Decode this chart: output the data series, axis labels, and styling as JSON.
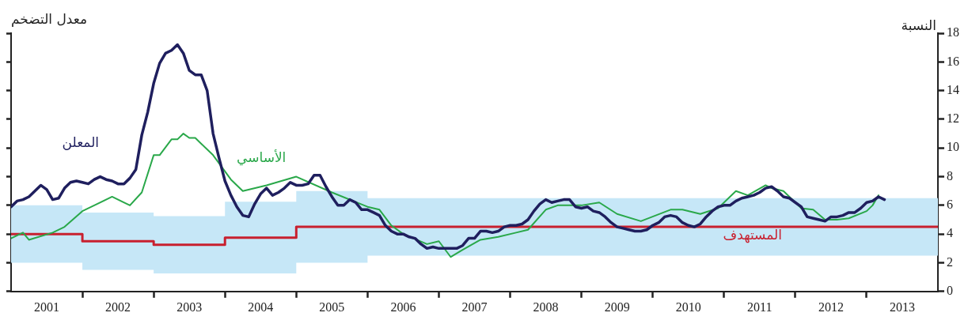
{
  "chart_data": {
    "type": "line",
    "title": "معدل التضخم",
    "ylabel": "النسبة",
    "x": [
      "2001-01",
      "2001-02",
      "2001-03",
      "2001-04",
      "2001-05",
      "2001-06",
      "2001-07",
      "2001-08",
      "2001-09",
      "2001-10",
      "2001-11",
      "2001-12",
      "2002-01",
      "2002-02",
      "2002-03",
      "2002-04",
      "2002-05",
      "2002-06",
      "2002-07",
      "2002-08",
      "2002-09",
      "2002-10",
      "2002-11",
      "2002-12",
      "2003-01",
      "2003-02",
      "2003-03",
      "2003-04",
      "2003-05",
      "2003-06",
      "2003-07",
      "2003-08",
      "2003-09",
      "2003-10",
      "2003-11",
      "2003-12",
      "2004-01",
      "2004-02",
      "2004-03",
      "2004-04",
      "2004-05",
      "2004-06",
      "2004-07",
      "2004-08",
      "2004-09",
      "2004-10",
      "2004-11",
      "2004-12",
      "2005-01",
      "2005-02",
      "2005-03",
      "2005-04",
      "2005-05",
      "2005-06",
      "2005-07",
      "2005-08",
      "2005-09",
      "2005-10",
      "2005-11",
      "2005-12",
      "2006-01",
      "2006-02",
      "2006-03",
      "2006-04",
      "2006-05",
      "2006-06",
      "2006-07",
      "2006-08",
      "2006-09",
      "2006-10",
      "2006-11",
      "2006-12",
      "2007-01",
      "2007-02",
      "2007-03",
      "2007-04",
      "2007-05",
      "2007-06",
      "2007-07",
      "2007-08",
      "2007-09",
      "2007-10",
      "2007-11",
      "2007-12",
      "2008-01",
      "2008-02",
      "2008-03",
      "2008-04",
      "2008-05",
      "2008-06",
      "2008-07",
      "2008-08",
      "2008-09",
      "2008-10",
      "2008-11",
      "2008-12",
      "2009-01",
      "2009-02",
      "2009-03",
      "2009-04",
      "2009-05",
      "2009-06",
      "2009-07",
      "2009-08",
      "2009-09",
      "2009-10",
      "2009-11",
      "2009-12",
      "2010-01",
      "2010-02",
      "2010-03",
      "2010-04",
      "2010-05",
      "2010-06",
      "2010-07",
      "2010-08",
      "2010-09",
      "2010-10",
      "2010-11",
      "2010-12",
      "2011-01",
      "2011-02",
      "2011-03",
      "2011-04",
      "2011-05",
      "2011-06",
      "2011-07",
      "2011-08",
      "2011-09",
      "2011-10",
      "2011-11",
      "2011-12",
      "2012-01",
      "2012-02",
      "2012-03",
      "2012-04",
      "2012-05",
      "2012-06",
      "2012-07",
      "2012-08",
      "2012-09",
      "2012-10",
      "2012-11",
      "2012-12",
      "2013-01",
      "2013-02",
      "2013-03",
      "2013-04"
    ],
    "series": [
      {
        "name": "المعلن",
        "type": "line",
        "color": "#1f1f5e",
        "values": [
          5.9,
          6.3,
          6.4,
          6.6,
          7.0,
          7.4,
          7.1,
          6.4,
          6.5,
          7.2,
          7.6,
          7.7,
          7.6,
          7.5,
          7.8,
          8.0,
          7.8,
          7.7,
          7.5,
          7.5,
          7.9,
          8.5,
          10.9,
          12.5,
          14.5,
          15.9,
          16.6,
          16.8,
          17.2,
          16.6,
          15.4,
          15.1,
          15.1,
          14.0,
          11.0,
          9.3,
          7.7,
          6.7,
          5.9,
          5.3,
          5.2,
          6.1,
          6.8,
          7.2,
          6.7,
          6.9,
          7.2,
          7.6,
          7.4,
          7.4,
          7.5,
          8.1,
          8.1,
          7.3,
          6.6,
          6.0,
          6.0,
          6.4,
          6.2,
          5.7,
          5.7,
          5.5,
          5.3,
          4.6,
          4.2,
          4.0,
          4.0,
          3.8,
          3.7,
          3.3,
          3.0,
          3.1,
          3.0,
          3.0,
          3.0,
          3.0,
          3.2,
          3.7,
          3.7,
          4.2,
          4.2,
          4.1,
          4.2,
          4.5,
          4.6,
          4.6,
          4.7,
          5.0,
          5.6,
          6.1,
          6.4,
          6.2,
          6.3,
          6.4,
          6.4,
          5.9,
          5.8,
          5.9,
          5.6,
          5.5,
          5.2,
          4.8,
          4.5,
          4.4,
          4.3,
          4.2,
          4.2,
          4.3,
          4.6,
          4.8,
          5.2,
          5.3,
          5.2,
          4.8,
          4.6,
          4.5,
          4.7,
          5.2,
          5.6,
          5.9,
          6.0,
          6.0,
          6.3,
          6.5,
          6.6,
          6.7,
          6.9,
          7.2,
          7.3,
          7.0,
          6.6,
          6.5,
          6.2,
          5.9,
          5.2,
          5.1,
          5.0,
          4.9,
          5.2,
          5.2,
          5.3,
          5.5,
          5.5,
          5.8,
          6.2,
          6.3,
          6.6,
          6.4
        ]
      },
      {
        "name": "الأساسي",
        "type": "line",
        "color": "#2aa84a",
        "x": [
          "2001-01",
          "2001-03",
          "2001-04",
          "2001-08",
          "2001-10",
          "2002-01",
          "2002-03",
          "2002-06",
          "2002-09",
          "2002-11",
          "2003-01",
          "2003-02",
          "2003-04",
          "2003-05",
          "2003-06",
          "2003-07",
          "2003-08",
          "2003-11",
          "2004-02",
          "2004-04",
          "2004-08",
          "2005-01",
          "2005-07",
          "2006-01",
          "2006-03",
          "2006-05",
          "2006-07",
          "2006-11",
          "2007-01",
          "2007-03",
          "2007-05",
          "2007-08",
          "2007-11",
          "2008-02",
          "2008-04",
          "2008-07",
          "2008-09",
          "2009-01",
          "2009-04",
          "2009-07",
          "2009-11",
          "2010-04",
          "2010-06",
          "2010-09",
          "2010-12",
          "2011-03",
          "2011-05",
          "2011-08",
          "2011-09",
          "2011-11",
          "2012-02",
          "2012-04",
          "2012-06",
          "2012-08",
          "2012-10",
          "2013-01",
          "2013-02",
          "2013-03"
        ],
        "values": [
          3.7,
          4.1,
          3.6,
          4.1,
          4.5,
          5.6,
          6.0,
          6.6,
          6.0,
          6.9,
          9.5,
          9.5,
          10.6,
          10.6,
          11.0,
          10.7,
          10.7,
          9.5,
          7.8,
          7.0,
          7.4,
          8.0,
          6.9,
          5.9,
          5.7,
          4.6,
          4.0,
          3.3,
          3.5,
          2.4,
          2.9,
          3.6,
          3.8,
          4.1,
          4.3,
          5.7,
          6.0,
          6.0,
          6.2,
          5.4,
          4.9,
          5.7,
          5.7,
          5.4,
          5.8,
          7.0,
          6.7,
          7.4,
          7.2,
          7.0,
          5.8,
          5.7,
          5.0,
          5.0,
          5.1,
          5.6,
          6.0,
          6.7
        ]
      },
      {
        "name": "المستهدف",
        "type": "step",
        "color": "#c8202f",
        "x": [
          "2001-01",
          "2002-01",
          "2003-01",
          "2004-01",
          "2005-01",
          "2006-01",
          "2007-01",
          "2008-01",
          "2009-01",
          "2010-01",
          "2011-01",
          "2012-01",
          "2013-01",
          "2014-01"
        ],
        "values": [
          4,
          3.5,
          3.25,
          3.75,
          4.5,
          4.5,
          4.5,
          4.5,
          4.5,
          4.5,
          4.5,
          4.5,
          4.5,
          4.5
        ],
        "lower": [
          2,
          1.5,
          1.25,
          1.25,
          2,
          2.5,
          2.5,
          2.5,
          2.5,
          2.5,
          2.5,
          2.5,
          2.5,
          2.5
        ],
        "upper": [
          6,
          5.5,
          5.25,
          6.25,
          7,
          6.5,
          6.5,
          6.5,
          6.5,
          6.5,
          6.5,
          6.5,
          6.5,
          6.5
        ]
      }
    ],
    "xlim": [
      "2001-01",
      "2014-01"
    ],
    "xticks": [
      {
        "value": "2001-07",
        "label": "2001"
      },
      {
        "value": "2002-01",
        "label": null
      },
      {
        "value": "2002-07",
        "label": "2002"
      },
      {
        "value": "2003-01",
        "label": null
      },
      {
        "value": "2003-07",
        "label": "2003"
      },
      {
        "value": "2004-01",
        "label": null
      },
      {
        "value": "2004-07",
        "label": "2004"
      },
      {
        "value": "2005-01",
        "label": null
      },
      {
        "value": "2005-07",
        "label": "2005"
      },
      {
        "value": "2006-01",
        "label": null
      },
      {
        "value": "2006-07",
        "label": "2006"
      },
      {
        "value": "2007-01",
        "label": null
      },
      {
        "value": "2007-07",
        "label": "2007"
      },
      {
        "value": "2008-01",
        "label": null
      },
      {
        "value": "2008-07",
        "label": "2008"
      },
      {
        "value": "2009-01",
        "label": null
      },
      {
        "value": "2009-07",
        "label": "2009"
      },
      {
        "value": "2010-01",
        "label": null
      },
      {
        "value": "2010-07",
        "label": "2010"
      },
      {
        "value": "2011-01",
        "label": null
      },
      {
        "value": "2011-07",
        "label": "2011"
      },
      {
        "value": "2012-01",
        "label": null
      },
      {
        "value": "2012-07",
        "label": "2012"
      },
      {
        "value": "2013-01",
        "label": null
      },
      {
        "value": "2013-07",
        "label": "2013"
      }
    ],
    "ylim": [
      0,
      18
    ],
    "yticks": [
      0,
      2,
      4,
      6,
      8,
      10,
      12,
      14,
      16,
      18
    ]
  }
}
